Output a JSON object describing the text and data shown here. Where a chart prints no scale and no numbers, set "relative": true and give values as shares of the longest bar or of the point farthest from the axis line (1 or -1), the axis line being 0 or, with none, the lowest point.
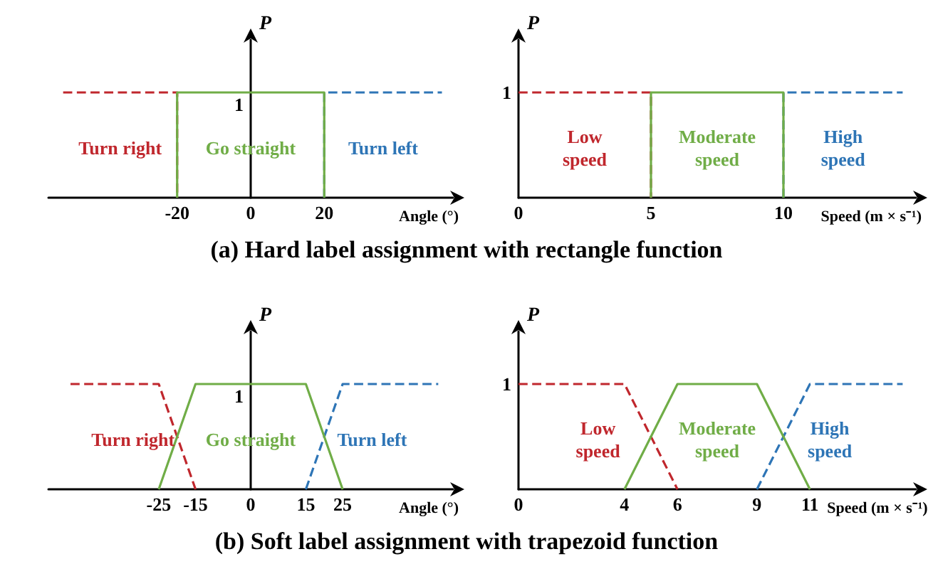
{
  "chart_data": [
    {
      "type": "line",
      "relative": true,
      "xlabel": "Angle (°)",
      "ylabel": "P",
      "title": "(a)  Hard label assignment with rectangle function",
      "annotations": [
        "1"
      ],
      "xlim": [
        -55,
        55
      ],
      "xticks": [
        -20,
        0,
        20
      ],
      "marker": "none",
      "series": [
        {
          "name": "Turn right",
          "color": "#c0272d",
          "line_style": "dashed",
          "x": [
            -51,
            -20,
            -20
          ],
          "values": [
            1,
            1,
            0
          ]
        },
        {
          "name": "Go straight",
          "color": "#70ad47",
          "line_style": "solid",
          "x": [
            -20,
            -20,
            20,
            20
          ],
          "values": [
            0,
            1,
            1,
            0
          ]
        },
        {
          "name": "Turn left",
          "color": "#2e75b6",
          "line_style": "dashed",
          "x": [
            20,
            20,
            52
          ],
          "values": [
            0,
            1,
            1
          ]
        }
      ]
    },
    {
      "type": "line",
      "relative": true,
      "xlabel": "Speed (m × s⁻¹)",
      "ylabel": "P",
      "annotations": [
        "1"
      ],
      "xlim": [
        0,
        15
      ],
      "xticks": [
        0,
        5,
        10
      ],
      "marker": "none",
      "series": [
        {
          "name": "Low\nspeed",
          "color": "#c0272d",
          "line_style": "dashed",
          "x": [
            0,
            5,
            5
          ],
          "values": [
            1,
            1,
            0
          ]
        },
        {
          "name": "Moderate\nspeed",
          "color": "#70ad47",
          "line_style": "solid",
          "x": [
            5,
            5,
            10,
            10
          ],
          "values": [
            0,
            1,
            1,
            0
          ]
        },
        {
          "name": "High\nspeed",
          "color": "#2e75b6",
          "line_style": "dashed",
          "x": [
            10,
            10,
            14.5
          ],
          "values": [
            0,
            1,
            1
          ]
        }
      ]
    },
    {
      "type": "line",
      "relative": true,
      "xlabel": "Angle (°)",
      "ylabel": "P",
      "title": "(b)  Soft label assignment with trapezoid function",
      "annotations": [
        "1"
      ],
      "xlim": [
        -55,
        55
      ],
      "xticks": [
        -25,
        -15,
        0,
        15,
        25
      ],
      "marker": "none",
      "series": [
        {
          "name": "Turn right",
          "color": "#c0272d",
          "line_style": "dashed",
          "x": [
            -49,
            -25,
            -15
          ],
          "values": [
            1,
            1,
            0
          ]
        },
        {
          "name": "Go straight",
          "color": "#70ad47",
          "line_style": "solid",
          "x": [
            -25,
            -15,
            15,
            25
          ],
          "values": [
            0,
            1,
            1,
            0
          ]
        },
        {
          "name": "Turn left",
          "color": "#2e75b6",
          "line_style": "dashed",
          "x": [
            15,
            25,
            51
          ],
          "values": [
            0,
            1,
            1
          ]
        }
      ]
    },
    {
      "type": "line",
      "relative": true,
      "xlabel": "Speed (m × s⁻¹)",
      "ylabel": "P",
      "annotations": [
        "1"
      ],
      "xlim": [
        0,
        15
      ],
      "xticks": [
        0,
        4,
        6,
        9,
        11
      ],
      "marker": "none",
      "series": [
        {
          "name": "Low\nspeed",
          "color": "#c0272d",
          "line_style": "dashed",
          "x": [
            0,
            4,
            6
          ],
          "values": [
            1,
            1,
            0
          ]
        },
        {
          "name": "Moderate\nspeed",
          "color": "#70ad47",
          "line_style": "solid",
          "x": [
            4,
            6,
            9,
            11
          ],
          "values": [
            0,
            1,
            1,
            0
          ]
        },
        {
          "name": "High\nspeed",
          "color": "#2e75b6",
          "line_style": "dashed",
          "x": [
            9,
            11,
            14.5
          ],
          "values": [
            0,
            1,
            1
          ]
        }
      ]
    }
  ]
}
